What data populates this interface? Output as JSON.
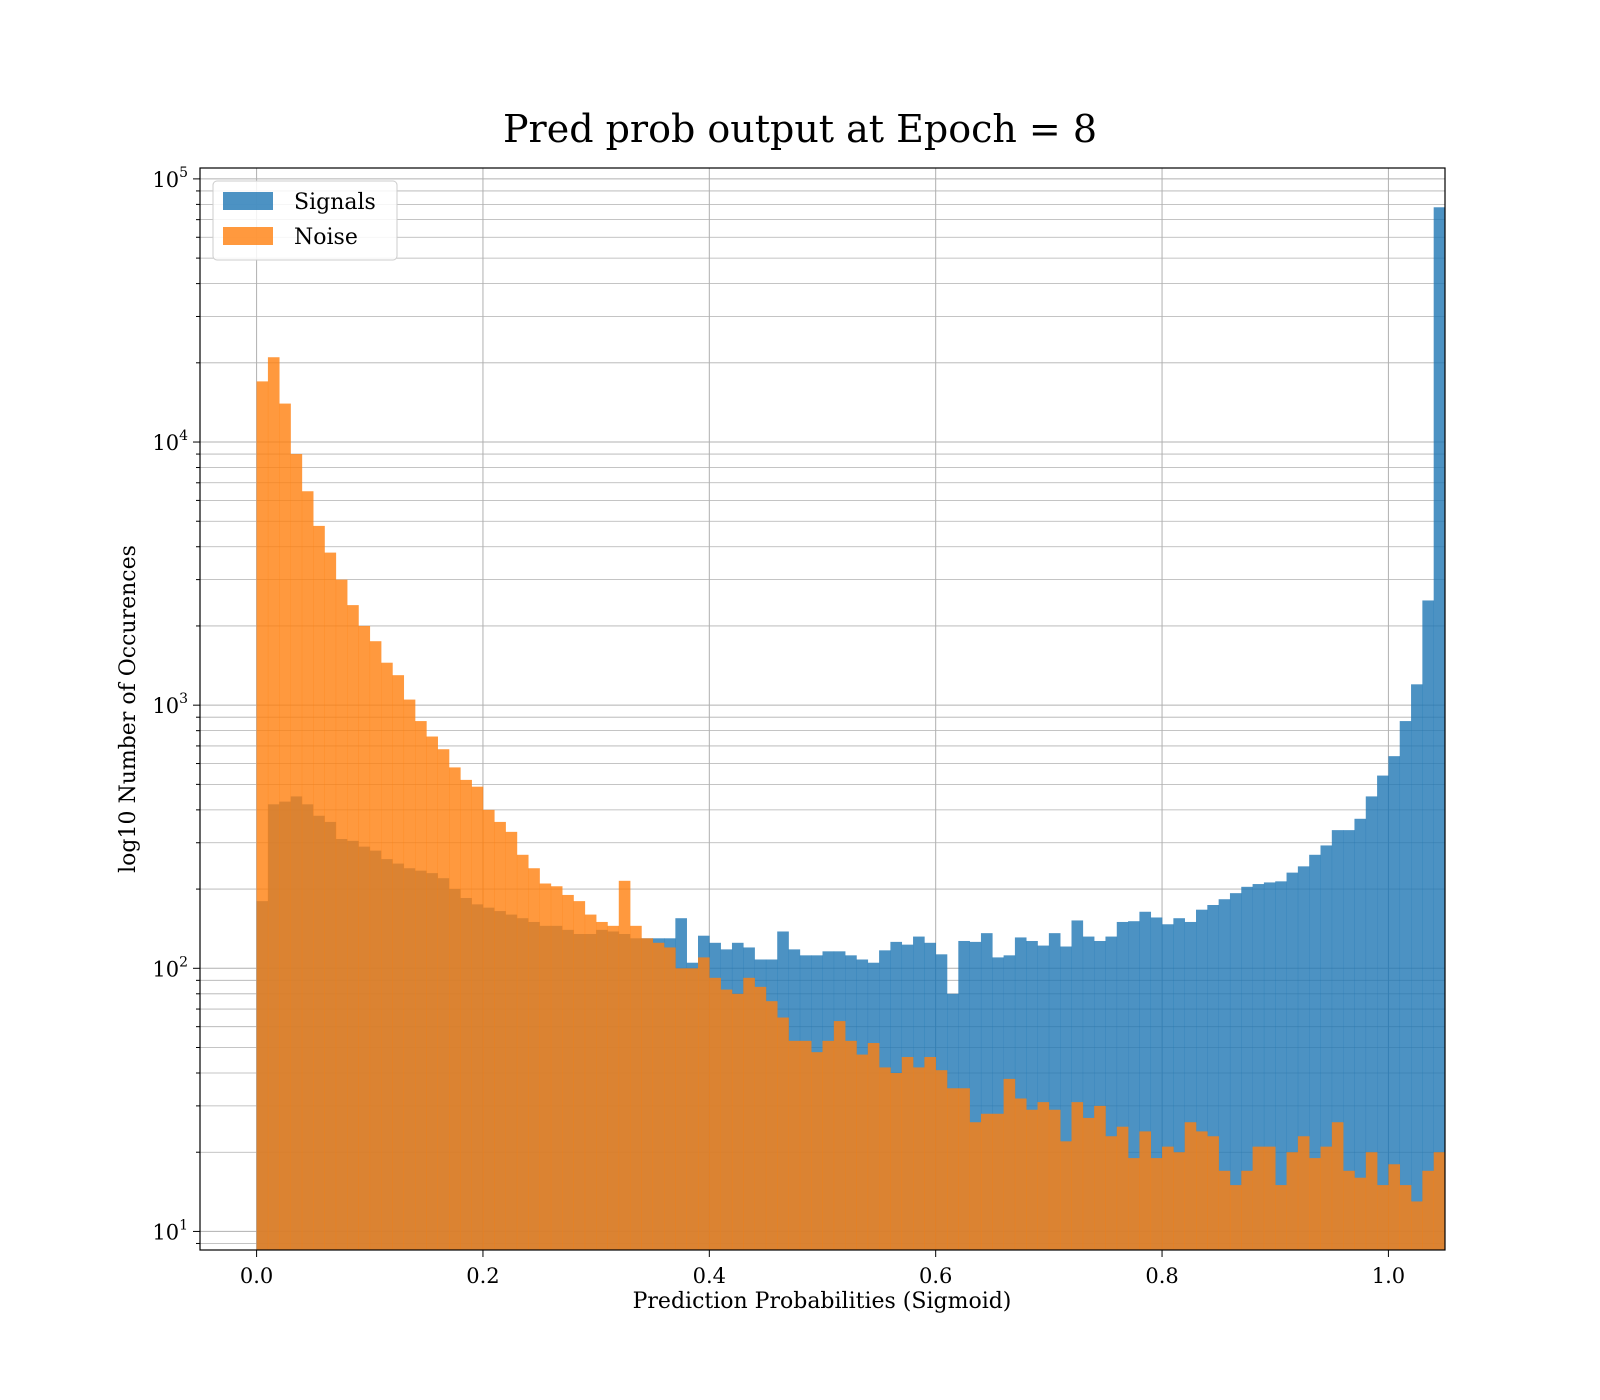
{
  "chart_data": {
    "type": "bar",
    "title": "Pred prob output at Epoch = 8",
    "xlabel": "Prediction Probabilities (Sigmoid)",
    "ylabel": "log10 Number of Occurences",
    "yscale": "log",
    "xlim": [
      -0.05,
      1.05
    ],
    "ylim": [
      8.5,
      110000
    ],
    "grid": true,
    "legend_position": "top-left",
    "x_ticks": [
      {
        "value": 0.0,
        "label": "0.0"
      },
      {
        "value": 0.2,
        "label": "0.2"
      },
      {
        "value": 0.4,
        "label": "0.4"
      },
      {
        "value": 0.6,
        "label": "0.6"
      },
      {
        "value": 0.8,
        "label": "0.8"
      },
      {
        "value": 1.0,
        "label": "1.0"
      }
    ],
    "y_ticks": [
      {
        "value": 10,
        "base": "10",
        "exp": "1"
      },
      {
        "value": 100,
        "base": "10",
        "exp": "2"
      },
      {
        "value": 1000,
        "base": "10",
        "exp": "3"
      },
      {
        "value": 10000,
        "base": "10",
        "exp": "4"
      },
      {
        "value": 100000,
        "base": "10",
        "exp": "5"
      }
    ],
    "bin_start": 0.0,
    "bin_width": 0.01,
    "series": [
      {
        "name": "Signals",
        "color": "#1f77b4",
        "alpha": 0.8,
        "values": [
          180,
          420,
          430,
          450,
          420,
          380,
          360,
          310,
          305,
          290,
          280,
          260,
          250,
          240,
          235,
          230,
          220,
          200,
          185,
          175,
          170,
          165,
          160,
          155,
          150,
          145,
          145,
          140,
          135,
          135,
          140,
          138,
          135,
          130,
          130,
          130,
          130,
          155,
          105,
          133,
          125,
          118,
          125,
          120,
          108,
          108,
          138,
          118,
          112,
          112,
          116,
          116,
          112,
          108,
          105,
          117,
          126,
          123,
          132,
          125,
          113,
          80,
          127,
          126,
          136,
          110,
          112,
          131,
          127,
          122,
          136,
          121,
          152,
          132,
          127,
          132,
          150,
          151,
          164,
          156,
          147,
          155,
          150,
          167,
          174,
          183,
          193,
          204,
          209,
          212,
          214,
          231,
          244,
          270,
          293,
          335,
          335,
          370,
          450,
          540,
          640,
          870,
          1200,
          2500,
          78000
        ]
      },
      {
        "name": "Noise",
        "color": "#ff7f0e",
        "alpha": 0.8,
        "values": [
          17000,
          21000,
          14000,
          9000,
          6500,
          4800,
          3800,
          3000,
          2400,
          2000,
          1750,
          1450,
          1300,
          1050,
          870,
          760,
          680,
          580,
          520,
          490,
          400,
          360,
          330,
          270,
          240,
          210,
          205,
          190,
          180,
          160,
          150,
          145,
          215,
          145,
          130,
          125,
          120,
          100,
          100,
          110,
          92,
          83,
          80,
          92,
          85,
          75,
          65,
          53,
          53,
          48,
          53,
          63,
          53,
          47,
          52,
          42,
          40,
          46,
          42,
          46,
          41,
          35,
          35,
          26,
          28,
          28,
          38,
          32,
          29,
          31,
          29,
          22,
          31,
          27,
          30,
          23,
          25,
          19,
          24,
          19,
          21,
          20,
          26,
          24,
          23,
          17,
          15,
          17,
          21,
          21,
          15,
          20,
          23,
          19,
          21,
          26,
          17,
          16,
          20,
          15,
          18,
          15,
          13,
          17,
          20
        ]
      }
    ]
  }
}
